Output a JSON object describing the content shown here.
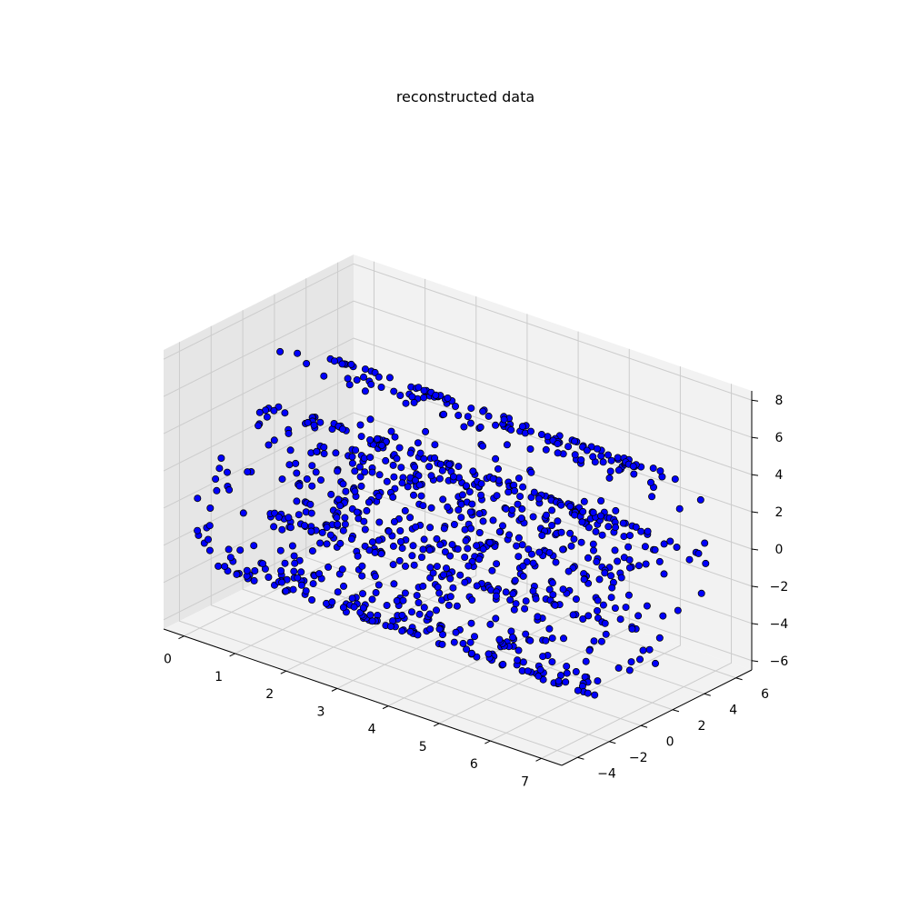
{
  "chart_data": {
    "type": "scatter",
    "projection": "3d",
    "title": "reconstructed data",
    "xlabel": "",
    "ylabel": "",
    "zlabel": "",
    "xlim": [
      -0.4,
      7.4
    ],
    "ylim": [
      -5,
      7
    ],
    "zlim": [
      -6.5,
      8.5
    ],
    "x_ticks": [
      0,
      1,
      2,
      3,
      4,
      5,
      6,
      7
    ],
    "y_ticks": [
      -4,
      -2,
      0,
      2,
      4,
      6
    ],
    "z_ticks": [
      -6,
      -4,
      -2,
      0,
      2,
      4,
      6,
      8
    ],
    "x_tick_labels": [
      "0",
      "1",
      "2",
      "3",
      "4",
      "5",
      "6",
      "7"
    ],
    "y_tick_labels": [
      "−4",
      "−2",
      "0",
      "2",
      "4",
      "6"
    ],
    "z_tick_labels": [
      "−6",
      "−4",
      "−2",
      "0",
      "2",
      "4",
      "6",
      "8"
    ],
    "grid": true,
    "marker_color": "#0000ff",
    "marker_edge_color": "#000000",
    "pane_color": "#f2f2f2",
    "point_count": 1000,
    "distribution": "swiss roll: spiral parameter t from 4.7 to 14.1, y = t·cos(t)/2.2 in about [-5, 6.5], z = t·sin(t)/2.2 in about [-6, 7], x spread uniformly over about [0, 7]"
  }
}
